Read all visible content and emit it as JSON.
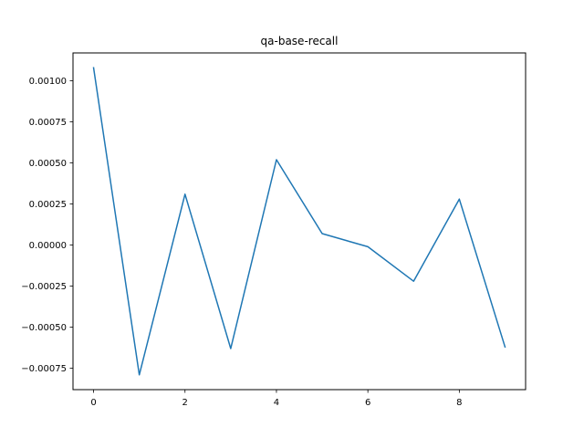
{
  "chart_data": {
    "type": "line",
    "title": "qa-base-recall",
    "xlabel": "",
    "ylabel": "",
    "x": [
      0,
      1,
      2,
      3,
      4,
      5,
      6,
      7,
      8,
      9
    ],
    "series": [
      {
        "color": "#1f77b4",
        "values": [
          0.00108,
          -0.00079,
          0.00031,
          -0.00063,
          0.00052,
          7e-05,
          -1e-05,
          -0.00022,
          0.00028,
          -0.00062
        ]
      }
    ],
    "xlim": [
      -0.45,
      9.45
    ],
    "ylim": [
      -0.00088,
      0.00117
    ],
    "xticks": [
      0,
      2,
      4,
      6,
      8
    ],
    "xtick_labels": [
      "0",
      "2",
      "4",
      "6",
      "8"
    ],
    "yticks": [
      -0.00075,
      -0.0005,
      -0.00025,
      0,
      0.00025,
      0.0005,
      0.00075,
      0.001
    ],
    "ytick_labels": [
      "−0.00075",
      "−0.00050",
      "−0.00025",
      "0.00000",
      "0.00025",
      "0.00050",
      "0.00075",
      "0.00100"
    ],
    "grid": false,
    "legend": "none"
  }
}
